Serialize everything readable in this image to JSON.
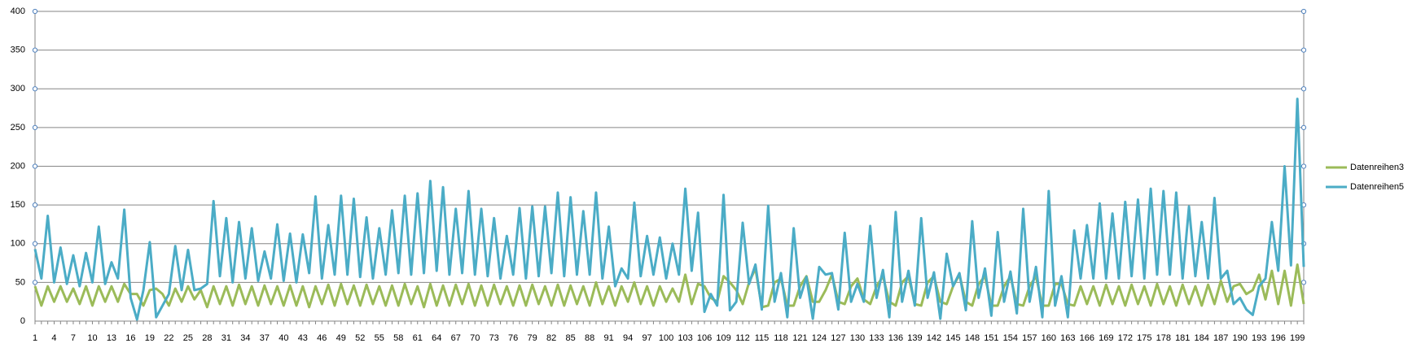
{
  "chart_data": {
    "type": "line",
    "categories": [
      1,
      null,
      null,
      4,
      null,
      null,
      7,
      null,
      null,
      10,
      null,
      null,
      13,
      null,
      null,
      16,
      null,
      null,
      19,
      null,
      null,
      22,
      null,
      null,
      25,
      null,
      null,
      28,
      null,
      null,
      31,
      null,
      null,
      34,
      null,
      null,
      37,
      null,
      null,
      40,
      null,
      null,
      43,
      null,
      null,
      46,
      null,
      null,
      49,
      null,
      null,
      52,
      null,
      null,
      55,
      null,
      null,
      58,
      null,
      null,
      61,
      null,
      null,
      64,
      null,
      null,
      67,
      null,
      null,
      70,
      null,
      null,
      73,
      null,
      null,
      76,
      null,
      null,
      79,
      null,
      null,
      82,
      null,
      null,
      85,
      null,
      null,
      88,
      null,
      null,
      91,
      null,
      null,
      94,
      null,
      null,
      97,
      null,
      null,
      100,
      null,
      null,
      103,
      null,
      null,
      106,
      null,
      null,
      109,
      null,
      null,
      112,
      null,
      null,
      115,
      null,
      null,
      118,
      null,
      null,
      121,
      null,
      null,
      124,
      null,
      null,
      127,
      null,
      null,
      130,
      null,
      null,
      133,
      null,
      null,
      136,
      null,
      null,
      139,
      null,
      null,
      142,
      null,
      null,
      145,
      null,
      null,
      148,
      null,
      null,
      151,
      null,
      null,
      154,
      null,
      null,
      157,
      null,
      null,
      160,
      null,
      null,
      163,
      null,
      null,
      166,
      null,
      null,
      169,
      null,
      null,
      172,
      null,
      null,
      175,
      null,
      null,
      178,
      null,
      null,
      181,
      null,
      null,
      184,
      null,
      null,
      187,
      null,
      null,
      190,
      null,
      null,
      193,
      null,
      null,
      196,
      null,
      null,
      199,
      null
    ],
    "series": [
      {
        "name": "Datenreihen3",
        "color": "#9bbb59",
        "values": [
          45,
          20,
          45,
          25,
          45,
          25,
          42,
          22,
          45,
          20,
          45,
          25,
          45,
          25,
          48,
          35,
          35,
          20,
          40,
          42,
          35,
          20,
          42,
          25,
          45,
          28,
          40,
          18,
          45,
          22,
          45,
          20,
          47,
          22,
          45,
          20,
          46,
          22,
          45,
          20,
          46,
          20,
          45,
          18,
          45,
          22,
          47,
          20,
          48,
          22,
          46,
          20,
          47,
          22,
          45,
          20,
          46,
          20,
          48,
          22,
          45,
          18,
          48,
          20,
          46,
          20,
          47,
          22,
          48,
          20,
          46,
          20,
          47,
          22,
          45,
          20,
          46,
          20,
          47,
          22,
          45,
          20,
          47,
          20,
          46,
          22,
          45,
          20,
          50,
          22,
          45,
          20,
          45,
          25,
          50,
          22,
          45,
          20,
          45,
          25,
          42,
          25,
          60,
          22,
          48,
          45,
          30,
          25,
          58,
          50,
          40,
          22,
          50,
          68,
          18,
          20,
          50,
          55,
          20,
          20,
          45,
          58,
          25,
          25,
          40,
          60,
          25,
          22,
          45,
          55,
          28,
          22,
          45,
          58,
          25,
          20,
          50,
          58,
          22,
          20,
          50,
          58,
          25,
          22,
          45,
          60,
          25,
          20,
          48,
          58,
          20,
          20,
          45,
          58,
          22,
          20,
          45,
          58,
          20,
          20,
          48,
          48,
          22,
          20,
          45,
          22,
          45,
          20,
          47,
          22,
          45,
          20,
          47,
          22,
          45,
          20,
          48,
          22,
          45,
          20,
          47,
          22,
          45,
          20,
          47,
          22,
          52,
          25,
          45,
          48,
          35,
          40,
          60,
          28,
          65,
          22,
          65,
          20,
          73,
          22
        ]
      },
      {
        "name": "Datenreihen5",
        "color": "#4bacc6",
        "values": [
          93,
          55,
          136,
          50,
          95,
          48,
          85,
          45,
          88,
          50,
          122,
          48,
          76,
          55,
          144,
          30,
          2,
          40,
          102,
          5,
          20,
          35,
          97,
          40,
          92,
          40,
          42,
          48,
          155,
          58,
          133,
          50,
          128,
          55,
          120,
          52,
          90,
          55,
          125,
          52,
          113,
          50,
          112,
          62,
          161,
          55,
          124,
          60,
          162,
          60,
          158,
          57,
          134,
          55,
          120,
          60,
          143,
          62,
          162,
          60,
          165,
          62,
          181,
          65,
          173,
          60,
          145,
          62,
          168,
          60,
          145,
          58,
          133,
          55,
          110,
          60,
          146,
          55,
          148,
          58,
          148,
          62,
          166,
          58,
          160,
          60,
          142,
          60,
          166,
          55,
          122,
          45,
          68,
          55,
          153,
          58,
          110,
          60,
          108,
          55,
          100,
          60,
          171,
          65,
          140,
          12,
          35,
          20,
          163,
          14,
          25,
          127,
          48,
          73,
          15,
          149,
          25,
          62,
          5,
          120,
          30,
          57,
          3,
          70,
          60,
          62,
          15,
          114,
          25,
          48,
          25,
          123,
          30,
          66,
          5,
          141,
          25,
          65,
          20,
          133,
          30,
          63,
          3,
          87,
          45,
          62,
          14,
          129,
          30,
          68,
          7,
          115,
          25,
          64,
          10,
          145,
          25,
          70,
          5,
          168,
          20,
          58,
          5,
          117,
          55,
          124,
          55,
          152,
          55,
          139,
          55,
          154,
          58,
          157,
          55,
          171,
          60,
          168,
          60,
          166,
          55,
          148,
          58,
          128,
          55,
          159,
          55,
          65,
          22,
          30,
          15,
          8,
          45,
          55,
          128,
          65,
          200,
          72,
          287,
          70
        ]
      }
    ],
    "ylim": [
      0,
      400
    ],
    "yticks": [
      0,
      50,
      100,
      150,
      200,
      250,
      300,
      350,
      400
    ],
    "grid": true,
    "legend": "right"
  }
}
